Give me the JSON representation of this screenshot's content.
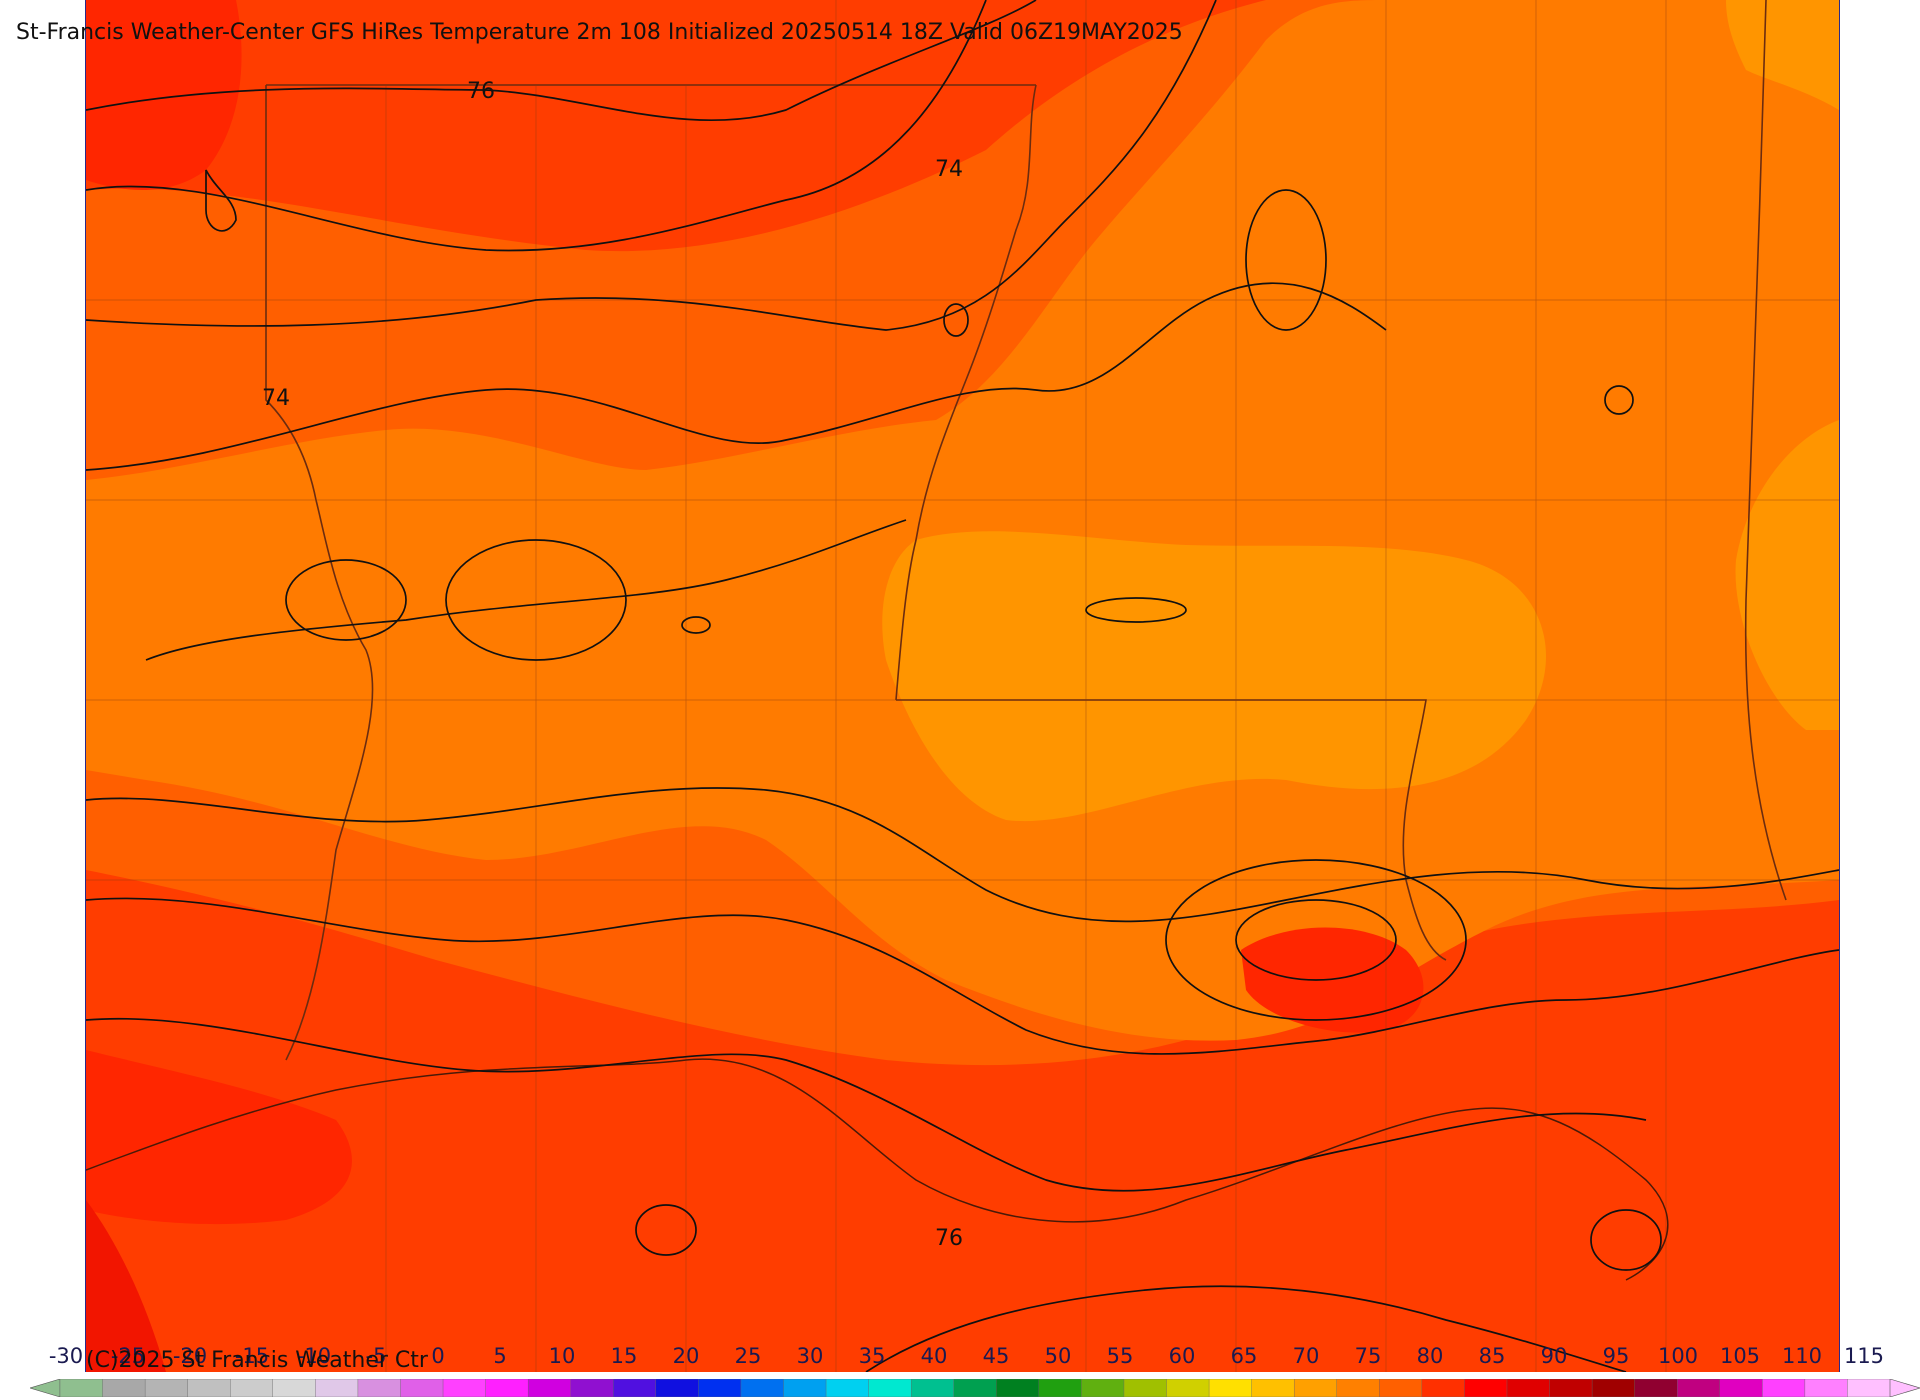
{
  "title": "St-Francis Weather-Center GFS HiRes Temperature 2m  108 Initialized 20250514 18Z Valid 06Z19MAY2025",
  "copyright": "(C)2025 St Francis Weather Ctr",
  "contour_labels": [
    "76",
    "74",
    "74",
    "76"
  ],
  "colorbar": {
    "ticks": [
      "-30",
      "-25",
      "-20",
      "-15",
      "-10",
      "-5",
      "0",
      "5",
      "10",
      "15",
      "20",
      "25",
      "30",
      "35",
      "40",
      "45",
      "50",
      "55",
      "60",
      "65",
      "70",
      "75",
      "80",
      "85",
      "90",
      "95",
      "100",
      "105",
      "110",
      "115"
    ],
    "colors": [
      "#8fbf8f",
      "#a8a8a8",
      "#b4b4b4",
      "#c0c0c0",
      "#cccccc",
      "#d8d8d8",
      "#e0c8e8",
      "#d890e0",
      "#e060e8",
      "#ff40ff",
      "#ff20ff",
      "#d000e0",
      "#9010d0",
      "#5010e0",
      "#1010e0",
      "#0030f0",
      "#0070f0",
      "#00a0f0",
      "#00d0f0",
      "#00e8d0",
      "#00c090",
      "#00a050",
      "#008020",
      "#20a010",
      "#60b010",
      "#a0c000",
      "#d0d000",
      "#ffe000",
      "#ffc000",
      "#ffa000",
      "#ff8000",
      "#ff6000",
      "#ff3000",
      "#ff0000",
      "#e00000",
      "#c00000",
      "#a00000",
      "#900030",
      "#c00080",
      "#e000c0",
      "#ff40ff",
      "#ff80ff",
      "#ffc0ff"
    ]
  },
  "colors": {
    "band_62": "#ff9500",
    "band_64": "#ff7b00",
    "band_66": "#ff5f00",
    "band_68": "#ff3d00",
    "band_70": "#ff2600",
    "band_72": "#f21500",
    "contour": "#111111",
    "boundary": "#6b2c10"
  }
}
